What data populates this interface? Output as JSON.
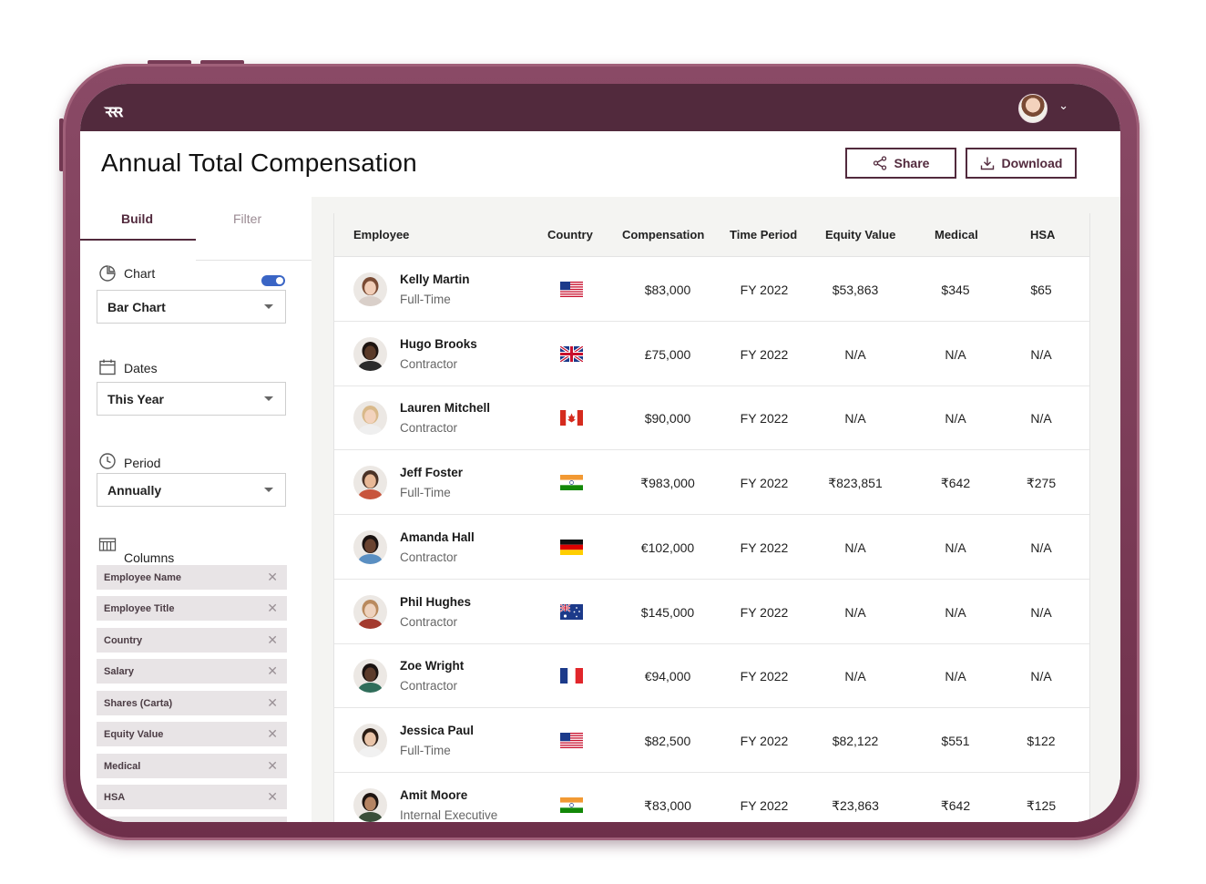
{
  "app": {
    "logo": "ꝛꝛꝛ"
  },
  "header": {
    "title": "Annual Total Compensation",
    "share_label": "Share",
    "download_label": "Download"
  },
  "sidebar": {
    "tabs": {
      "build": "Build",
      "filter": "Filter"
    },
    "chart": {
      "label": "Chart",
      "value": "Bar Chart",
      "toggle_on": true
    },
    "dates": {
      "label": "Dates",
      "value": "This Year"
    },
    "period": {
      "label": "Period",
      "value": "Annually"
    },
    "columns": {
      "label": "Columns",
      "items": [
        "Employee Name",
        "Employee Title",
        "Country",
        "Salary",
        "Shares (Carta)",
        "Equity Value",
        "Medical",
        "HSA"
      ]
    }
  },
  "table": {
    "headers": [
      "Employee",
      "Country",
      "Compensation",
      "Time Period",
      "Equity Value",
      "Medical",
      "HSA"
    ],
    "rows": [
      {
        "name": "Kelly Martin",
        "type": "Full-Time",
        "flag": "us",
        "comp": "$83,000",
        "period": "FY 2022",
        "equity": "$53,863",
        "medical": "$345",
        "hsa": "$65"
      },
      {
        "name": "Hugo Brooks",
        "type": "Contractor",
        "flag": "gb",
        "comp": "£75,000",
        "period": "FY 2022",
        "equity": "N/A",
        "medical": "N/A",
        "hsa": "N/A"
      },
      {
        "name": "Lauren Mitchell",
        "type": "Contractor",
        "flag": "ca",
        "comp": "$90,000",
        "period": "FY 2022",
        "equity": "N/A",
        "medical": "N/A",
        "hsa": "N/A"
      },
      {
        "name": "Jeff Foster",
        "type": "Full-Time",
        "flag": "in",
        "comp": "₹983,000",
        "period": "FY 2022",
        "equity": "₹823,851",
        "medical": "₹642",
        "hsa": "₹275"
      },
      {
        "name": "Amanda Hall",
        "type": "Contractor",
        "flag": "de",
        "comp": "€102,000",
        "period": "FY 2022",
        "equity": "N/A",
        "medical": "N/A",
        "hsa": "N/A"
      },
      {
        "name": "Phil Hughes",
        "type": "Contractor",
        "flag": "au",
        "comp": "$145,000",
        "period": "FY 2022",
        "equity": "N/A",
        "medical": "N/A",
        "hsa": "N/A"
      },
      {
        "name": "Zoe Wright",
        "type": "Contractor",
        "flag": "fr",
        "comp": "€94,000",
        "period": "FY 2022",
        "equity": "N/A",
        "medical": "N/A",
        "hsa": "N/A"
      },
      {
        "name": "Jessica Paul",
        "type": "Full-Time",
        "flag": "us",
        "comp": "$82,500",
        "period": "FY 2022",
        "equity": "$82,122",
        "medical": "$551",
        "hsa": "$122"
      },
      {
        "name": "Amit Moore",
        "type": "Internal Executive",
        "flag": "in",
        "comp": "₹83,000",
        "period": "FY 2022",
        "equity": "₹23,863",
        "medical": "₹642",
        "hsa": "₹125"
      }
    ]
  },
  "colors": {
    "brand": "#522a3d",
    "frame": "#7b3f59",
    "toggle": "#3a65c5"
  }
}
